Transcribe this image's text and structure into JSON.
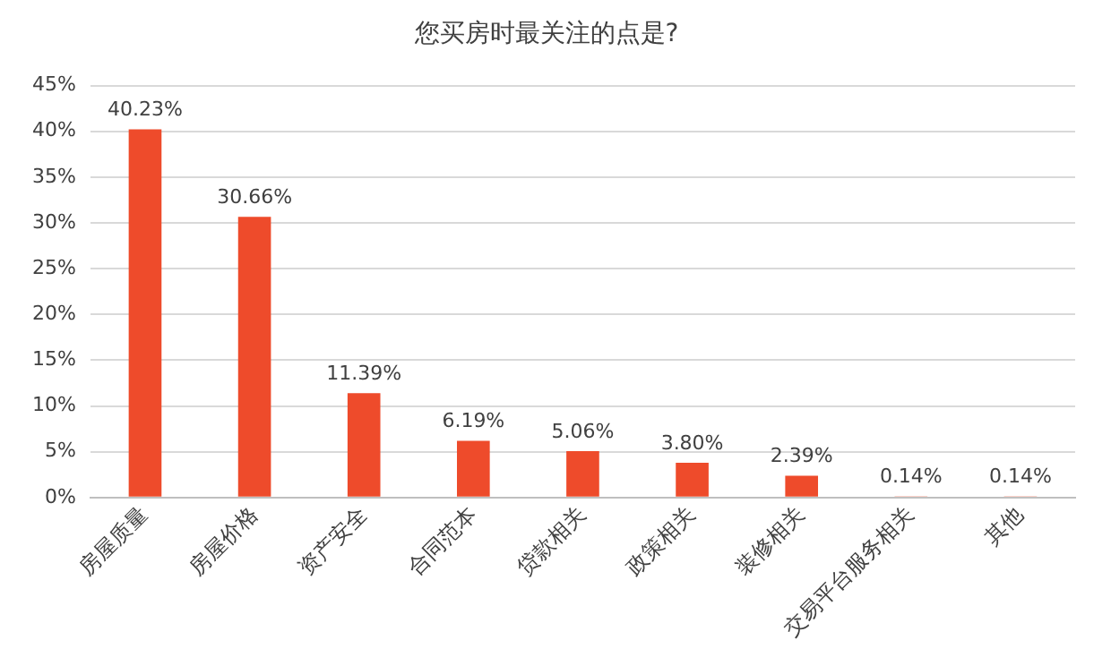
{
  "chart_data": {
    "type": "bar",
    "title": "您买房时最关注的点是?",
    "categories": [
      "房屋质量",
      "房屋价格",
      "资产安全",
      "合同范本",
      "贷款相关",
      "政策相关",
      "装修相关",
      "交易平台服务相关",
      "其他"
    ],
    "values": [
      40.23,
      30.66,
      11.39,
      6.19,
      5.06,
      3.8,
      2.39,
      0.14,
      0.14
    ],
    "value_labels": [
      "40.23%",
      "30.66%",
      "11.39%",
      "6.19%",
      "5.06%",
      "3.80%",
      "2.39%",
      "0.14%",
      "0.14%"
    ],
    "color": "#ee4b2b",
    "ylim": [
      0,
      45
    ],
    "yticks": [
      {
        "value": 0,
        "label": "0%"
      },
      {
        "value": 5,
        "label": "5%"
      },
      {
        "value": 10,
        "label": "10%"
      },
      {
        "value": 15,
        "label": "15%"
      },
      {
        "value": 20,
        "label": "20%"
      },
      {
        "value": 25,
        "label": "25%"
      },
      {
        "value": 30,
        "label": "30%"
      },
      {
        "value": 35,
        "label": "35%"
      },
      {
        "value": 40,
        "label": "40%"
      },
      {
        "value": 45,
        "label": "45%"
      }
    ],
    "grid": "y",
    "legend": false
  }
}
